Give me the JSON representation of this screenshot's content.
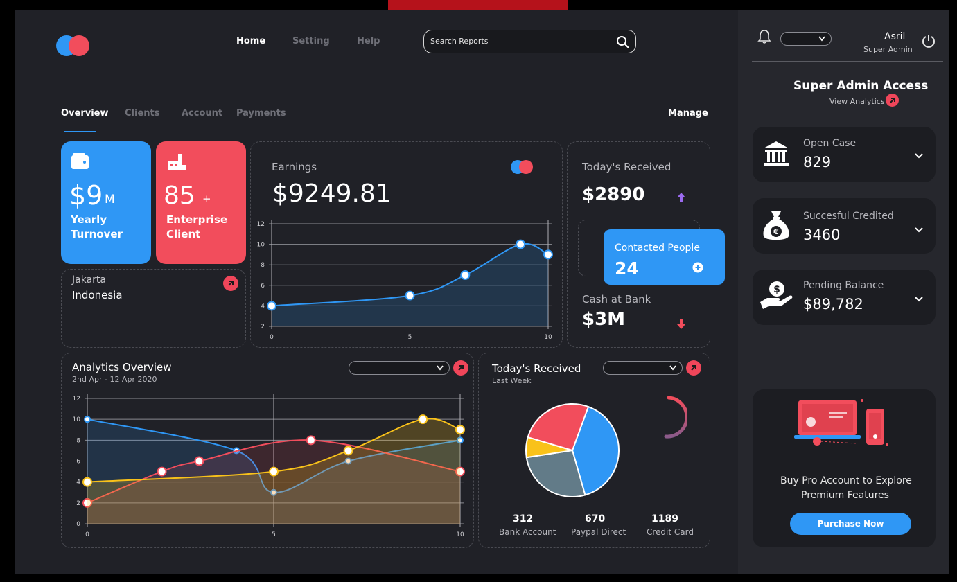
{
  "header": {
    "nav": [
      "Home",
      "Setting",
      "Help"
    ],
    "search_placeholder": "Search Reports"
  },
  "tabs": [
    "Overview",
    "Clients",
    "Account",
    "Payments"
  ],
  "manage_label": "Manage",
  "cards": {
    "turnover": {
      "value": "$9",
      "unit": "M",
      "label1": "Yearly",
      "label2": "Turnover",
      "icon": "wallet-icon",
      "color": "#2f97f5"
    },
    "enterprise": {
      "value": "85",
      "unit": "+",
      "label1": "Enterprise",
      "label2": "Client",
      "icon": "factory-icon",
      "color": "#f24d5c"
    },
    "location": {
      "city": "Jakarta",
      "country": "Indonesia"
    }
  },
  "earnings": {
    "label": "Earnings",
    "value": "$9249.81"
  },
  "received": {
    "label": "Today's Received",
    "value": "$2890",
    "contacted_label": "Contacted People",
    "contacted_value": "24",
    "cash_label": "Cash at Bank",
    "cash_value": "$3M"
  },
  "analytics": {
    "title": "Analytics Overview",
    "range": "2nd Apr - 12 Apr 2020"
  },
  "pie_card": {
    "title": "Today's Received",
    "subtitle": "Last Week",
    "stats": [
      {
        "value": "312",
        "label": "Bank Account"
      },
      {
        "value": "670",
        "label": "Paypal Direct"
      },
      {
        "value": "1189",
        "label": "Credit Card"
      }
    ]
  },
  "user": {
    "name": "Asril",
    "role": "Super Admin"
  },
  "admin": {
    "title": "Super Admin Access",
    "link": "View Analytics"
  },
  "side_cards": [
    {
      "label": "Open Case",
      "value": "829",
      "icon": "bank-icon"
    },
    {
      "label": "Succesful Credited",
      "value": "3460",
      "icon": "money-bag-icon"
    },
    {
      "label": "Pending Balance",
      "value": "$89,782",
      "icon": "hand-coin-icon"
    }
  ],
  "promo": {
    "line1": "Buy Pro Account to Explore",
    "line2": "Premium Features",
    "button": "Purchase Now"
  },
  "colors": {
    "blue": "#2f97f5",
    "red": "#f24d5c",
    "yellow": "#f9c21a",
    "slate": "#627b88",
    "bg": "#202127"
  },
  "chart_data": [
    {
      "type": "area",
      "x": [
        0,
        5,
        7,
        9,
        10
      ],
      "series": [
        {
          "values": [
            4,
            5,
            7,
            10,
            9
          ]
        }
      ],
      "xticks": [
        0,
        5,
        10
      ],
      "yticks": [
        2,
        4,
        6,
        8,
        10,
        12
      ],
      "xlim": [
        0,
        10
      ],
      "ylim": [
        2,
        12
      ],
      "grid": true
    },
    {
      "type": "area",
      "xticks": [
        0,
        5,
        10
      ],
      "yticks": [
        0,
        2,
        4,
        6,
        8,
        10,
        12
      ],
      "xlim": [
        0,
        10
      ],
      "ylim": [
        0,
        12
      ],
      "grid": true,
      "series": [
        {
          "x": [
            0,
            4,
            5,
            7,
            10
          ],
          "values": [
            10,
            7,
            3,
            6,
            8
          ]
        },
        {
          "x": [
            0,
            2,
            3,
            6,
            10
          ],
          "values": [
            2,
            5,
            6,
            8,
            5
          ]
        },
        {
          "x": [
            0,
            5,
            7,
            9,
            10
          ],
          "values": [
            4,
            5,
            7,
            10,
            9
          ]
        }
      ]
    },
    {
      "type": "pie",
      "values": [
        40,
        27,
        7,
        26
      ],
      "colors": [
        "#2f97f5",
        "#627b88",
        "#f9c21a",
        "#f24d5c"
      ]
    }
  ]
}
